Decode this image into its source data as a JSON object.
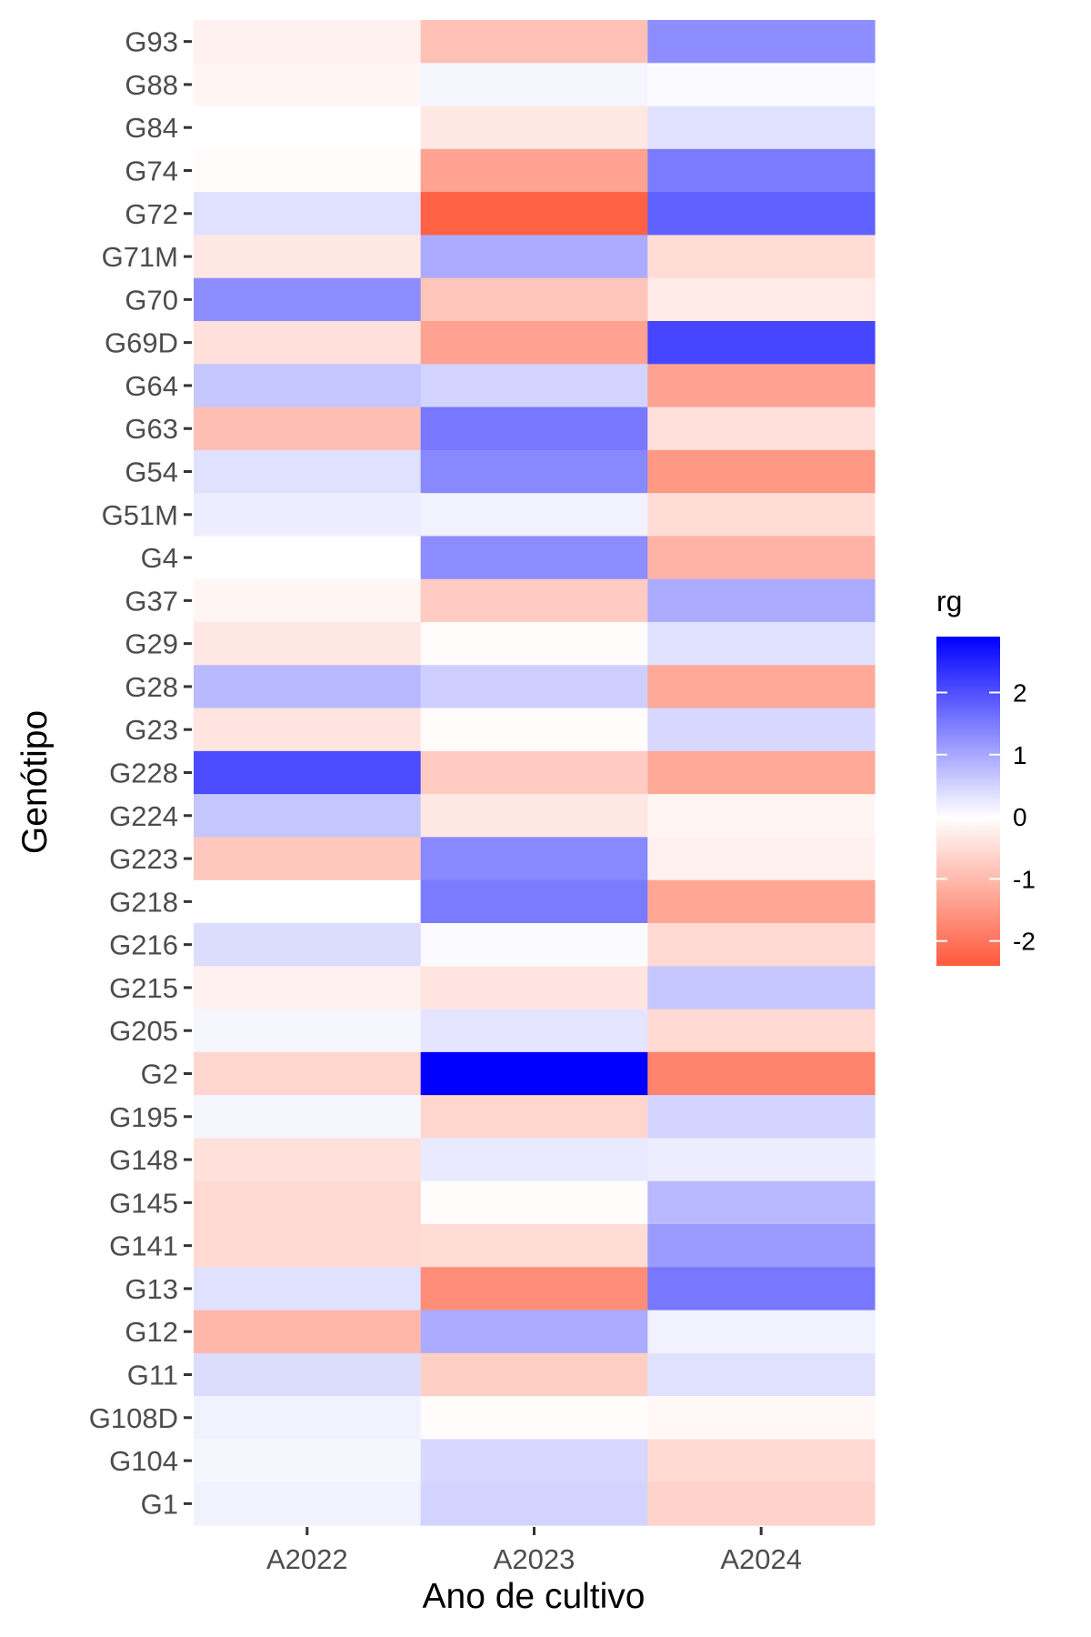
{
  "chart_data": {
    "type": "heatmap",
    "xlabel": "Ano de cultivo",
    "ylabel": "Genótipo",
    "x_categories": [
      "A2022",
      "A2023",
      "A2024"
    ],
    "y_categories": [
      "G93",
      "G88",
      "G84",
      "G74",
      "G72",
      "G71M",
      "G70",
      "G69D",
      "G64",
      "G63",
      "G54",
      "G51M",
      "G4",
      "G37",
      "G29",
      "G28",
      "G23",
      "G228",
      "G224",
      "G223",
      "G218",
      "G216",
      "G215",
      "G205",
      "G2",
      "G195",
      "G148",
      "G145",
      "G141",
      "G13",
      "G12",
      "G11",
      "G108D",
      "G104",
      "G1"
    ],
    "values": [
      [
        -0.2,
        -0.9,
        1.3
      ],
      [
        -0.15,
        0.1,
        0.05
      ],
      [
        0.0,
        -0.35,
        0.35
      ],
      [
        -0.05,
        -1.35,
        1.5
      ],
      [
        0.35,
        -2.3,
        1.8
      ],
      [
        -0.35,
        0.95,
        -0.5
      ],
      [
        1.3,
        -0.85,
        -0.3
      ],
      [
        -0.45,
        -1.35,
        2.1
      ],
      [
        0.65,
        0.5,
        -1.35
      ],
      [
        -0.95,
        1.55,
        -0.45
      ],
      [
        0.35,
        1.35,
        -1.5
      ],
      [
        0.2,
        0.15,
        -0.5
      ],
      [
        0.0,
        1.3,
        -1.1
      ],
      [
        -0.15,
        -0.75,
        0.95
      ],
      [
        -0.35,
        -0.05,
        0.35
      ],
      [
        0.8,
        0.55,
        -1.25
      ],
      [
        -0.4,
        -0.05,
        0.45
      ],
      [
        2.05,
        -0.75,
        -1.25
      ],
      [
        0.65,
        -0.35,
        -0.15
      ],
      [
        -0.8,
        1.35,
        -0.2
      ],
      [
        0.0,
        1.5,
        -1.3
      ],
      [
        0.4,
        0.05,
        -0.55
      ],
      [
        -0.2,
        -0.4,
        0.65
      ],
      [
        0.1,
        0.3,
        -0.55
      ],
      [
        -0.6,
        2.9,
        -1.8
      ],
      [
        0.1,
        -0.6,
        0.5
      ],
      [
        -0.45,
        0.25,
        0.2
      ],
      [
        -0.55,
        -0.05,
        0.8
      ],
      [
        -0.55,
        -0.5,
        1.15
      ],
      [
        0.35,
        -1.65,
        1.55
      ],
      [
        -1.05,
        0.95,
        0.15
      ],
      [
        0.4,
        -0.7,
        0.35
      ],
      [
        0.15,
        -0.05,
        -0.1
      ],
      [
        0.1,
        0.45,
        -0.55
      ],
      [
        0.15,
        0.5,
        -0.65
      ]
    ],
    "color_scale": {
      "low": "#ff5a3c",
      "mid": "#ffffff",
      "high": "#0000ff",
      "domain": [
        -2.4,
        0,
        2.9
      ]
    },
    "legend": {
      "title": "rg",
      "ticks": [
        2,
        1,
        0,
        -1,
        -2
      ],
      "tick_labels": [
        "2",
        "1",
        "0",
        "-1",
        "-2"
      ],
      "placement": "right"
    }
  }
}
